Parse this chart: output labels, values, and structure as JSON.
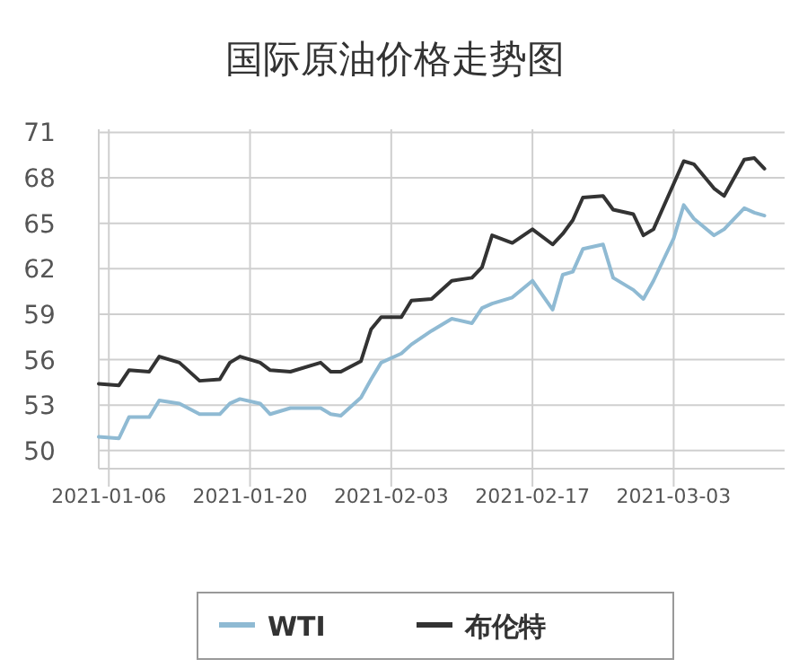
{
  "chart_data": {
    "type": "line",
    "title": "国际原油价格走势图",
    "x": [
      "2021-01-05",
      "2021-01-07",
      "2021-01-08",
      "2021-01-10",
      "2021-01-11",
      "2021-01-13",
      "2021-01-15",
      "2021-01-17",
      "2021-01-18",
      "2021-01-19",
      "2021-01-21",
      "2021-01-22",
      "2021-01-24",
      "2021-01-27",
      "2021-01-28",
      "2021-01-29",
      "2021-01-31",
      "2021-02-01",
      "2021-02-02",
      "2021-02-04",
      "2021-02-05",
      "2021-02-07",
      "2021-02-09",
      "2021-02-11",
      "2021-02-12",
      "2021-02-13",
      "2021-02-15",
      "2021-02-17",
      "2021-02-19",
      "2021-02-20",
      "2021-02-21",
      "2021-02-22",
      "2021-02-24",
      "2021-02-25",
      "2021-02-27",
      "2021-02-28",
      "2021-03-01",
      "2021-03-03",
      "2021-03-04",
      "2021-03-05",
      "2021-03-07",
      "2021-03-08",
      "2021-03-10",
      "2021-03-11",
      "2021-03-12"
    ],
    "series": [
      {
        "name": "WTI",
        "color": "#8fbad3",
        "values": [
          50.9,
          50.8,
          52.2,
          52.2,
          53.3,
          53.1,
          52.4,
          52.4,
          53.1,
          53.4,
          53.1,
          52.4,
          52.8,
          52.8,
          52.4,
          52.3,
          53.5,
          54.7,
          55.8,
          56.4,
          57.0,
          57.9,
          58.7,
          58.4,
          59.4,
          59.7,
          60.1,
          61.2,
          59.3,
          61.6,
          61.8,
          63.3,
          63.6,
          61.4,
          60.6,
          60.0,
          61.2,
          64.0,
          66.2,
          65.3,
          64.2,
          64.6,
          66.0,
          65.7,
          65.5
        ]
      },
      {
        "name": "布伦特",
        "color": "#333333",
        "values": [
          54.4,
          54.3,
          55.3,
          55.2,
          56.2,
          55.8,
          54.6,
          54.7,
          55.8,
          56.2,
          55.8,
          55.3,
          55.2,
          55.8,
          55.2,
          55.2,
          55.9,
          58.0,
          58.8,
          58.8,
          59.9,
          60.0,
          61.2,
          61.4,
          62.1,
          64.2,
          63.7,
          64.6,
          63.6,
          64.3,
          65.2,
          66.7,
          66.8,
          65.9,
          65.6,
          64.2,
          64.6,
          67.6,
          69.1,
          68.9,
          67.3,
          66.8,
          69.2,
          69.3,
          68.6
        ]
      }
    ],
    "xlim": [
      "2021-01-05",
      "2021-03-14"
    ],
    "xticks": [
      {
        "value": "2021-01-06",
        "label": "2021-01-06"
      },
      {
        "value": "2021-01-20",
        "label": "2021-01-20"
      },
      {
        "value": "2021-02-03",
        "label": "2021-02-03"
      },
      {
        "value": "2021-02-17",
        "label": "2021-02-17"
      },
      {
        "value": "2021-03-03",
        "label": "2021-03-03"
      }
    ],
    "ylim": [
      48.8,
      71.2
    ],
    "yticks": [
      50,
      53,
      56,
      59,
      62,
      65,
      68,
      71
    ],
    "grid": true,
    "legend": "bottom",
    "marker": "none",
    "line_style": "solid"
  }
}
